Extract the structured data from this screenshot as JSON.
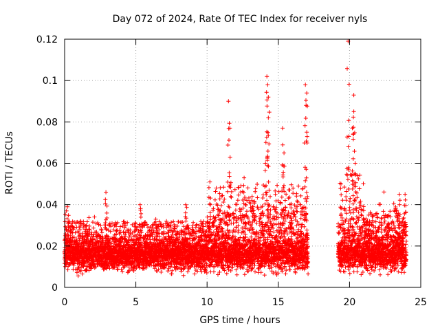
{
  "chart_data": {
    "type": "scatter",
    "title": "Day 072 of 2024, Rate Of TEC Index for receiver nyls",
    "xlabel": "GPS time / hours",
    "ylabel": "ROTI / TECUs",
    "xlim": [
      0,
      25
    ],
    "ylim": [
      0,
      0.12
    ],
    "x_ticks": [
      "0",
      "5",
      "10",
      "15",
      "20",
      "25"
    ],
    "y_ticks": [
      "0",
      "0.02",
      "0.04",
      "0.06",
      "0.08",
      "0.1",
      "0.12"
    ],
    "grid": true,
    "marker": "+",
    "color": "#ff0000",
    "data_gap": [
      17.1,
      19.2
    ],
    "representative_points": [
      {
        "x": 0.2,
        "y": 0.039
      },
      {
        "x": 2.9,
        "y": 0.046
      },
      {
        "x": 5.3,
        "y": 0.04
      },
      {
        "x": 8.5,
        "y": 0.04
      },
      {
        "x": 10.2,
        "y": 0.051
      },
      {
        "x": 11.5,
        "y": 0.09
      },
      {
        "x": 11.6,
        "y": 0.077
      },
      {
        "x": 12.6,
        "y": 0.053
      },
      {
        "x": 14.1,
        "y": 0.06
      },
      {
        "x": 14.2,
        "y": 0.102
      },
      {
        "x": 14.25,
        "y": 0.098
      },
      {
        "x": 14.3,
        "y": 0.092
      },
      {
        "x": 14.3,
        "y": 0.082
      },
      {
        "x": 15.3,
        "y": 0.077
      },
      {
        "x": 15.4,
        "y": 0.065
      },
      {
        "x": 16.9,
        "y": 0.098
      },
      {
        "x": 17.0,
        "y": 0.094
      },
      {
        "x": 16.95,
        "y": 0.088
      },
      {
        "x": 19.4,
        "y": 0.05
      },
      {
        "x": 19.9,
        "y": 0.119
      },
      {
        "x": 19.95,
        "y": 0.073
      },
      {
        "x": 20.3,
        "y": 0.093
      },
      {
        "x": 20.3,
        "y": 0.085
      },
      {
        "x": 20.2,
        "y": 0.077
      },
      {
        "x": 20.4,
        "y": 0.06
      },
      {
        "x": 23.5,
        "y": 0.045
      },
      {
        "x": 23.9,
        "y": 0.045
      }
    ],
    "bulk_range": {
      "y_min": 0.005,
      "y_max": 0.025,
      "typical": 0.013
    }
  }
}
